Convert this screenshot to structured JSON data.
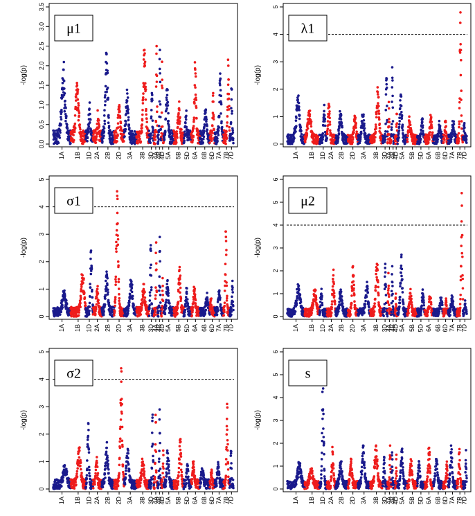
{
  "figure": {
    "colors": {
      "blue": "#1a1a8c",
      "red": "#ee1c1c",
      "threshold": "#000000"
    }
  },
  "chart_data": [
    {
      "type": "scatter",
      "label": "μ1",
      "ylabel": "-log(p)",
      "ylim": [
        0,
        3.5
      ],
      "yticks": [
        "0.0",
        "0.5",
        "1.0",
        "1.5",
        "2.0",
        "2.5",
        "3.0",
        "3.5"
      ],
      "threshold": null,
      "chromosomes": [
        "1A",
        "1B",
        "1D",
        "2A",
        "2B",
        "2D",
        "3A",
        "3B",
        "3D",
        "4A",
        "4B",
        "4D",
        "5A",
        "5B",
        "5D",
        "6A",
        "6B",
        "6D",
        "7A",
        "7B",
        "7D"
      ],
      "peaks": [
        1.9,
        1.5,
        0.9,
        0.6,
        2.3,
        0.9,
        1.1,
        2.4,
        1.3,
        2.5,
        2.4,
        2.1,
        1.4,
        0.9,
        0.7,
        1.9,
        0.8,
        1.3,
        1.8,
        2.0,
        1.4
      ]
    },
    {
      "type": "scatter",
      "label": "λ1",
      "ylabel": "-log(p)",
      "ylim": [
        0,
        5
      ],
      "yticks": [
        "0",
        "1",
        "2",
        "3",
        "4",
        "5"
      ],
      "threshold": 4,
      "chromosomes": [
        "1A",
        "1B",
        "1D",
        "2A",
        "2B",
        "2D",
        "3A",
        "3B",
        "3D",
        "4A",
        "4B",
        "4D",
        "5A",
        "5B",
        "5D",
        "6A",
        "6B",
        "6D",
        "7A",
        "7B",
        "7D"
      ],
      "peaks": [
        1.6,
        1.2,
        1.2,
        1.4,
        1.0,
        0.9,
        1.0,
        1.9,
        2.4,
        1.3,
        2.8,
        1.1,
        1.8,
        0.8,
        0.8,
        0.9,
        0.6,
        0.8,
        0.7,
        4.8,
        0.7
      ]
    },
    {
      "type": "scatter",
      "label": "σ1",
      "ylabel": "-log(p)",
      "ylim": [
        0,
        5
      ],
      "yticks": [
        "0",
        "1",
        "2",
        "3",
        "4",
        "5"
      ],
      "threshold": 4,
      "chromosomes": [
        "1A",
        "1B",
        "1D",
        "2A",
        "2B",
        "2D",
        "3A",
        "3B",
        "3D",
        "4A",
        "4B",
        "4D",
        "5A",
        "5B",
        "5D",
        "6A",
        "6B",
        "6D",
        "7A",
        "7B",
        "7D"
      ],
      "peaks": [
        0.7,
        1.5,
        2.4,
        1.0,
        1.5,
        4.4,
        1.3,
        1.0,
        2.6,
        2.7,
        2.9,
        1.4,
        1.3,
        1.7,
        0.9,
        0.9,
        0.6,
        0.6,
        0.9,
        3.1,
        1.3
      ]
    },
    {
      "type": "scatter",
      "label": "μ2",
      "ylabel": "-log(p)",
      "ylim": [
        0,
        6
      ],
      "yticks": [
        "0",
        "1",
        "2",
        "3",
        "4",
        "5",
        "6"
      ],
      "threshold": 4,
      "chromosomes": [
        "1A",
        "1B",
        "1D",
        "2A",
        "2B",
        "2D",
        "3A",
        "3B",
        "3D",
        "4A",
        "4B",
        "4D",
        "5A",
        "5B",
        "5D",
        "6A",
        "6B",
        "6D",
        "7A",
        "7B",
        "7D"
      ],
      "peaks": [
        1.3,
        1.1,
        1.0,
        1.8,
        1.0,
        2.2,
        1.3,
        2.3,
        2.3,
        1.9,
        2.2,
        1.0,
        2.6,
        1.0,
        1.0,
        0.8,
        0.7,
        0.7,
        0.8,
        5.4,
        0.7
      ]
    },
    {
      "type": "scatter",
      "label": "σ2",
      "ylabel": "-log(p)",
      "ylim": [
        0,
        5
      ],
      "yticks": [
        "0",
        "1",
        "2",
        "3",
        "4",
        "5"
      ],
      "threshold": 4,
      "chromosomes": [
        "1A",
        "1B",
        "1D",
        "2A",
        "2B",
        "2D",
        "3A",
        "3B",
        "3D",
        "4A",
        "4B",
        "4D",
        "5A",
        "5B",
        "5D",
        "6A",
        "6B",
        "6D",
        "7A",
        "7B",
        "7D"
      ],
      "peaks": [
        0.7,
        1.5,
        2.4,
        1.0,
        1.5,
        4.4,
        1.3,
        1.0,
        2.6,
        2.7,
        2.9,
        1.4,
        1.3,
        1.7,
        0.9,
        0.9,
        0.6,
        0.6,
        0.9,
        3.1,
        1.3
      ]
    },
    {
      "type": "scatter",
      "label": "s",
      "ylabel": "-log(p)",
      "ylim": [
        0,
        6
      ],
      "yticks": [
        "0",
        "1",
        "2",
        "3",
        "4",
        "5",
        "6"
      ],
      "threshold": null,
      "chromosomes": [
        "1A",
        "1B",
        "1D",
        "2A",
        "2B",
        "2D",
        "3A",
        "3B",
        "3D",
        "4A",
        "4B",
        "4D",
        "5A",
        "5B",
        "5D",
        "6A",
        "6B",
        "6D",
        "7A",
        "7B",
        "7D"
      ],
      "peaks": [
        1.0,
        0.8,
        4.9,
        1.6,
        1.1,
        1.2,
        1.9,
        1.9,
        1.4,
        1.9,
        1.6,
        1.5,
        1.7,
        1.1,
        1.2,
        1.8,
        1.3,
        1.0,
        1.9,
        1.6,
        1.7
      ]
    }
  ]
}
